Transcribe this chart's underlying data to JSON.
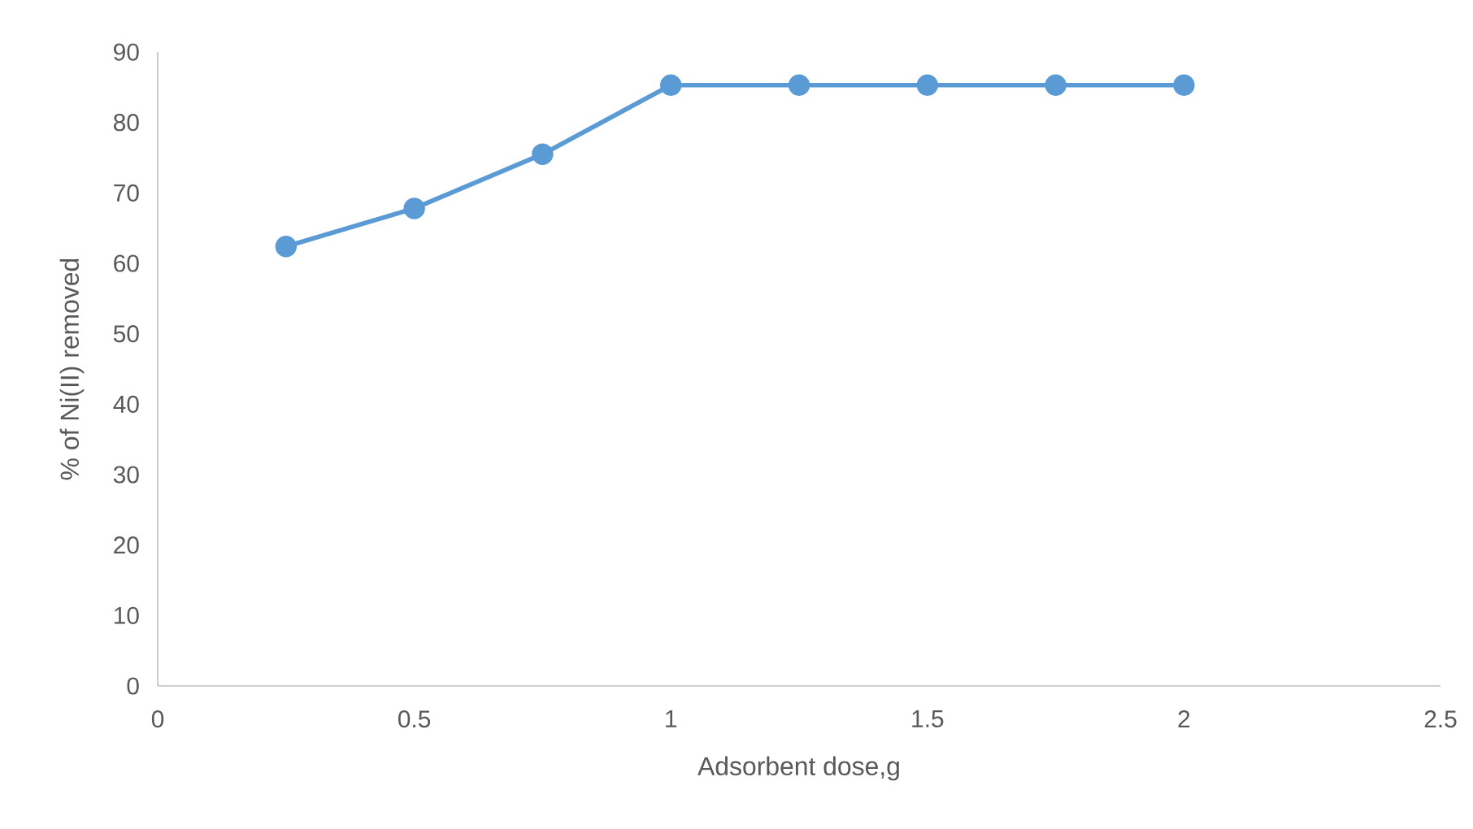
{
  "chart_data": {
    "type": "line",
    "xlabel": "Adsorbent dose,g",
    "ylabel": "% of Ni(II)  removed",
    "x": [
      0.25,
      0.5,
      0.75,
      1,
      1.25,
      1.5,
      1.75,
      2
    ],
    "series": [
      {
        "color": "#5b9bd5",
        "values": [
          62.4,
          67.8,
          75.5,
          85.3,
          85.3,
          85.3,
          85.3,
          85.3
        ]
      }
    ],
    "xlim": [
      0,
      2.5
    ],
    "xticks": [
      0,
      0.5,
      1,
      1.5,
      2,
      2.5
    ],
    "ylim": [
      0,
      90
    ],
    "yticks": [
      0,
      10,
      20,
      30,
      40,
      50,
      60,
      70,
      80,
      90
    ],
    "grid": false,
    "marker": "circle",
    "line_style": "solid"
  }
}
